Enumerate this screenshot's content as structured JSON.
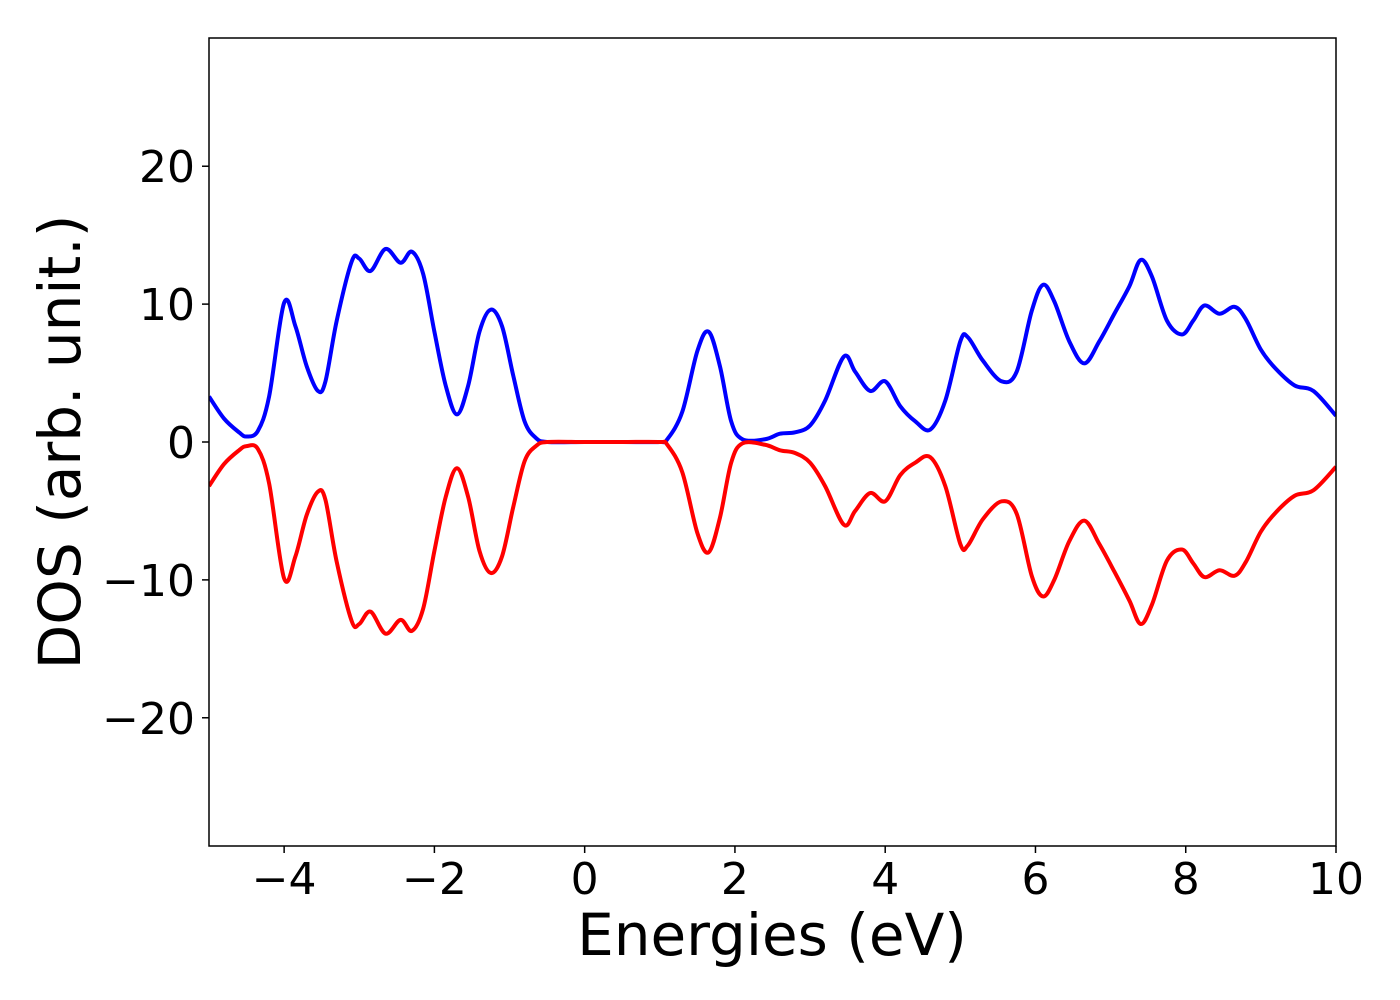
{
  "chart_data": {
    "type": "line",
    "xlabel": "Energies (eV)",
    "ylabel": "DOS (arb. unit.)",
    "xlim": [
      -5,
      10
    ],
    "ylim": [
      -29.3,
      29.3
    ],
    "xticks": [
      {
        "value": -4,
        "label": "−4"
      },
      {
        "value": -2,
        "label": "−2"
      },
      0,
      2,
      4,
      6,
      8,
      10
    ],
    "yticks": [
      {
        "value": -20,
        "label": "−20"
      },
      {
        "value": -10,
        "label": "−10"
      },
      0,
      10,
      20
    ],
    "x": [
      -5,
      -4.8,
      -4.6,
      -4.5,
      -4.35,
      -4.2,
      -4.0,
      -3.85,
      -3.7,
      -3.55,
      -3.45,
      -3.3,
      -3.1,
      -3.0,
      -2.85,
      -2.65,
      -2.45,
      -2.3,
      -2.15,
      -2.0,
      -1.85,
      -1.7,
      -1.55,
      -1.4,
      -1.25,
      -1.1,
      -0.95,
      -0.8,
      -0.65,
      -0.5,
      0,
      0.5,
      1.0,
      1.1,
      1.3,
      1.5,
      1.65,
      1.8,
      1.95,
      2.1,
      2.4,
      2.6,
      2.8,
      3.0,
      3.2,
      3.45,
      3.6,
      3.8,
      4.0,
      4.2,
      4.4,
      4.6,
      4.8,
      5.0,
      5.1,
      5.3,
      5.55,
      5.75,
      5.95,
      6.1,
      6.25,
      6.45,
      6.65,
      6.85,
      7.05,
      7.25,
      7.4,
      7.55,
      7.75,
      7.95,
      8.1,
      8.25,
      8.45,
      8.65,
      8.8,
      9.0,
      9.2,
      9.45,
      9.7,
      10
    ],
    "series": [
      {
        "color": "#0000ff",
        "values": [
          3.3,
          1.7,
          0.7,
          0.4,
          0.8,
          3.3,
          10.1,
          8.4,
          5.5,
          3.7,
          4.4,
          8.8,
          13.1,
          13.3,
          12.4,
          14.0,
          13.0,
          13.8,
          12.2,
          8.0,
          4.1,
          2.0,
          4.1,
          8.0,
          9.6,
          8.4,
          4.8,
          1.5,
          0.3,
          0,
          0,
          0,
          0,
          0.2,
          2.2,
          6.6,
          8.0,
          5.5,
          1.5,
          0.2,
          0.2,
          0.6,
          0.7,
          1.2,
          3.0,
          6.2,
          5.1,
          3.7,
          4.4,
          2.6,
          1.5,
          0.9,
          3.0,
          7.3,
          7.6,
          5.9,
          4.4,
          5.1,
          9.5,
          11.4,
          10.2,
          7.3,
          5.7,
          7.3,
          9.3,
          11.3,
          13.2,
          12.0,
          8.8,
          7.8,
          8.8,
          9.9,
          9.3,
          9.8,
          8.9,
          6.7,
          5.3,
          4.1,
          3.7,
          1.9
        ]
      },
      {
        "color": "#ff0000",
        "values": [
          -3.2,
          -1.6,
          -0.6,
          -0.3,
          -0.5,
          -3.0,
          -9.9,
          -8.3,
          -5.3,
          -3.6,
          -4.2,
          -8.7,
          -13.0,
          -13.2,
          -12.3,
          -13.9,
          -12.9,
          -13.7,
          -12.1,
          -7.9,
          -4.0,
          -1.9,
          -4.0,
          -7.9,
          -9.5,
          -8.3,
          -4.7,
          -1.4,
          -0.3,
          0,
          0,
          0,
          0,
          -0.2,
          -2.2,
          -6.6,
          -8.0,
          -5.5,
          -1.5,
          -0.1,
          -0.2,
          -0.6,
          -0.8,
          -1.5,
          -3.2,
          -6.0,
          -5.0,
          -3.7,
          -4.3,
          -2.4,
          -1.5,
          -1.1,
          -3.2,
          -7.4,
          -7.5,
          -5.6,
          -4.3,
          -5.2,
          -9.7,
          -11.2,
          -10.0,
          -7.2,
          -5.7,
          -7.4,
          -9.4,
          -11.5,
          -13.2,
          -11.8,
          -8.6,
          -7.8,
          -8.8,
          -9.8,
          -9.3,
          -9.7,
          -8.7,
          -6.5,
          -5.1,
          -3.9,
          -3.5,
          -1.8
        ]
      }
    ]
  }
}
